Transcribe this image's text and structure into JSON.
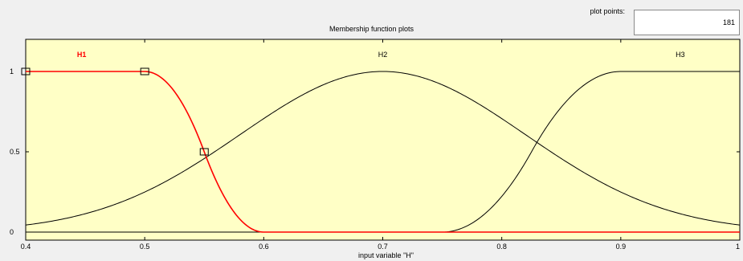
{
  "window": {
    "title": "Membership function plots",
    "plot_points_label": "plot points:",
    "plot_points_value": "181"
  },
  "colors": {
    "plot_background": "#ffffc6",
    "selected_curve": "#ff0000",
    "curve": "#000000",
    "window_background": "#f0f0f0"
  },
  "chart_data": {
    "type": "line",
    "title": "Membership function plots",
    "xlabel": "input variable \"H\"",
    "ylabel": "",
    "xlim": [
      0.4,
      1.0
    ],
    "ylim": [
      -0.05,
      1.2
    ],
    "xticks": [
      "0.4",
      "0.5",
      "0.6",
      "0.7",
      "0.8",
      "0.9",
      "1"
    ],
    "yticks": [
      "0",
      "0.5",
      "1"
    ],
    "grid": false,
    "series": [
      {
        "name": "H1",
        "mf": "zmf",
        "params": [
          0.5,
          0.6
        ],
        "selected": true,
        "label_x": 0.447,
        "x": [
          0.4,
          0.42,
          0.44,
          0.46,
          0.48,
          0.5,
          0.52,
          0.54,
          0.55,
          0.56,
          0.58,
          0.6,
          0.65,
          0.7,
          0.8,
          0.9,
          1.0
        ],
        "y": [
          1,
          1,
          1,
          1,
          1,
          1,
          0.92,
          0.68,
          0.5,
          0.32,
          0.08,
          0,
          0,
          0,
          0,
          0,
          0
        ]
      },
      {
        "name": "H2",
        "mf": "gaussmf",
        "params": [
          0.12,
          0.7
        ],
        "selected": false,
        "label_x": 0.7,
        "x": [
          0.4,
          0.45,
          0.5,
          0.55,
          0.6,
          0.65,
          0.7,
          0.75,
          0.8,
          0.85,
          0.9,
          0.95,
          1.0
        ],
        "y": [
          0.044,
          0.114,
          0.249,
          0.458,
          0.707,
          0.917,
          1.0,
          0.917,
          0.707,
          0.458,
          0.249,
          0.114,
          0.044
        ]
      },
      {
        "name": "H3",
        "mf": "smf",
        "params": [
          0.75,
          0.9
        ],
        "selected": false,
        "label_x": 0.95,
        "x": [
          0.4,
          0.5,
          0.6,
          0.7,
          0.75,
          0.78,
          0.8,
          0.825,
          0.85,
          0.87,
          0.9,
          0.95,
          1.0
        ],
        "y": [
          0,
          0,
          0,
          0,
          0,
          0.08,
          0.22,
          0.5,
          0.78,
          0.92,
          1,
          1,
          1
        ]
      }
    ],
    "selected_points": [
      {
        "x": 0.4,
        "y": 1
      },
      {
        "x": 0.5,
        "y": 1
      },
      {
        "x": 0.55,
        "y": 0.5
      }
    ]
  }
}
